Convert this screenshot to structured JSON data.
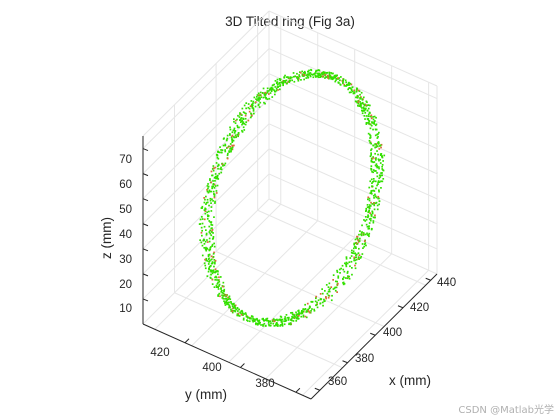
{
  "chart_data": {
    "type": "scatter",
    "title": "3D Tilted ring (Fig 3a)",
    "xlabel": "x (mm)",
    "ylabel": "y (mm)",
    "zlabel": "z (mm)",
    "xlim": [
      355,
      445
    ],
    "ylim": [
      370,
      430
    ],
    "zlim": [
      0,
      80
    ],
    "x_ticks": [
      "360",
      "380",
      "400",
      "420",
      "440"
    ],
    "y_ticks": [
      "420",
      "400",
      "380"
    ],
    "z_ticks": [
      "10",
      "20",
      "30",
      "40",
      "50",
      "60",
      "70"
    ],
    "grid": true,
    "view": "3d-oblique",
    "series": [
      {
        "marker": "point",
        "color": "#33e000",
        "accent_color": "#d96a3a",
        "shape": "tilted ring",
        "center": [
          400,
          400,
          40
        ],
        "approx_z_range": [
          4,
          78
        ],
        "points": 1500
      }
    ]
  },
  "watermark": "CSDN @Matlab光学"
}
